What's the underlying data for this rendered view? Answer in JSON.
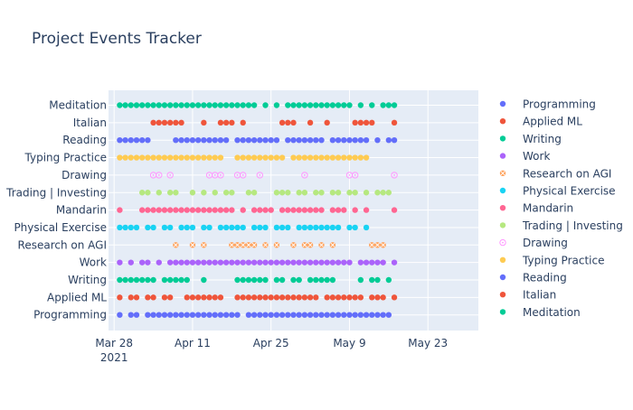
{
  "chart_data": {
    "type": "scatter",
    "title": "Project Events Tracker",
    "x_axis": {
      "type": "date",
      "range": [
        "2021-03-27",
        "2021-06-01"
      ],
      "ticks": [
        {
          "date": "2021-03-28",
          "label": "Mar 28",
          "sublabel": "2021"
        },
        {
          "date": "2021-04-11",
          "label": "Apr 11"
        },
        {
          "date": "2021-04-25",
          "label": "Apr 25"
        },
        {
          "date": "2021-05-09",
          "label": "May 9"
        },
        {
          "date": "2021-05-23",
          "label": "May 23"
        }
      ]
    },
    "y_axis": {
      "type": "category",
      "categories": [
        "Programming",
        "Applied ML",
        "Writing",
        "Work",
        "Research on AGI",
        "Physical Exercise",
        "Mandarin",
        "Trading | Investing",
        "Drawing",
        "Typing Practice",
        "Reading",
        "Italian",
        "Meditation"
      ]
    },
    "grid": true,
    "plot_background": "#e5ecf6",
    "legend_placement": "right",
    "series": [
      {
        "name": "Programming",
        "color": "#636efa",
        "symbol": "circle",
        "x": [
          "2021-03-29",
          "2021-03-31",
          "2021-04-01",
          "2021-04-03",
          "2021-04-04",
          "2021-04-05",
          "2021-04-06",
          "2021-04-07",
          "2021-04-08",
          "2021-04-09",
          "2021-04-10",
          "2021-04-11",
          "2021-04-12",
          "2021-04-13",
          "2021-04-14",
          "2021-04-15",
          "2021-04-16",
          "2021-04-17",
          "2021-04-18",
          "2021-04-19",
          "2021-04-21",
          "2021-04-22",
          "2021-04-23",
          "2021-04-24",
          "2021-04-25",
          "2021-04-26",
          "2021-04-27",
          "2021-04-28",
          "2021-04-29",
          "2021-04-30",
          "2021-05-01",
          "2021-05-02",
          "2021-05-03",
          "2021-05-04",
          "2021-05-05",
          "2021-05-06",
          "2021-05-07",
          "2021-05-08",
          "2021-05-09",
          "2021-05-10",
          "2021-05-11",
          "2021-05-12",
          "2021-05-13",
          "2021-05-14",
          "2021-05-15",
          "2021-05-16"
        ]
      },
      {
        "name": "Applied ML",
        "color": "#ef553b",
        "symbol": "circle",
        "x": [
          "2021-03-29",
          "2021-03-31",
          "2021-04-01",
          "2021-04-03",
          "2021-04-04",
          "2021-04-06",
          "2021-04-07",
          "2021-04-10",
          "2021-04-11",
          "2021-04-12",
          "2021-04-13",
          "2021-04-14",
          "2021-04-15",
          "2021-04-16",
          "2021-04-19",
          "2021-04-20",
          "2021-04-21",
          "2021-04-22",
          "2021-04-23",
          "2021-04-24",
          "2021-04-25",
          "2021-04-26",
          "2021-04-27",
          "2021-04-28",
          "2021-04-29",
          "2021-04-30",
          "2021-05-01",
          "2021-05-02",
          "2021-05-03",
          "2021-05-05",
          "2021-05-06",
          "2021-05-07",
          "2021-05-08",
          "2021-05-09",
          "2021-05-10",
          "2021-05-11",
          "2021-05-13",
          "2021-05-14",
          "2021-05-15",
          "2021-05-17"
        ]
      },
      {
        "name": "Writing",
        "color": "#00cc96",
        "symbol": "circle",
        "x": [
          "2021-03-29",
          "2021-03-30",
          "2021-03-31",
          "2021-04-01",
          "2021-04-02",
          "2021-04-03",
          "2021-04-04",
          "2021-04-06",
          "2021-04-07",
          "2021-04-08",
          "2021-04-09",
          "2021-04-10",
          "2021-04-13",
          "2021-04-19",
          "2021-04-20",
          "2021-04-21",
          "2021-04-22",
          "2021-04-23",
          "2021-04-24",
          "2021-04-26",
          "2021-04-27",
          "2021-04-29",
          "2021-04-30",
          "2021-05-02",
          "2021-05-03",
          "2021-05-04",
          "2021-05-05",
          "2021-05-06",
          "2021-05-11",
          "2021-05-13",
          "2021-05-14",
          "2021-05-16"
        ]
      },
      {
        "name": "Work",
        "color": "#ab63fa",
        "symbol": "circle",
        "x": [
          "2021-03-29",
          "2021-03-31",
          "2021-04-02",
          "2021-04-03",
          "2021-04-05",
          "2021-04-07",
          "2021-04-08",
          "2021-04-09",
          "2021-04-10",
          "2021-04-11",
          "2021-04-12",
          "2021-04-13",
          "2021-04-14",
          "2021-04-15",
          "2021-04-16",
          "2021-04-17",
          "2021-04-18",
          "2021-04-19",
          "2021-04-20",
          "2021-04-21",
          "2021-04-22",
          "2021-04-23",
          "2021-04-24",
          "2021-04-25",
          "2021-04-26",
          "2021-04-27",
          "2021-04-28",
          "2021-04-29",
          "2021-04-30",
          "2021-05-01",
          "2021-05-02",
          "2021-05-03",
          "2021-05-04",
          "2021-05-05",
          "2021-05-06",
          "2021-05-07",
          "2021-05-08",
          "2021-05-09",
          "2021-05-11",
          "2021-05-12",
          "2021-05-13",
          "2021-05-14",
          "2021-05-15",
          "2021-05-17"
        ]
      },
      {
        "name": "Research on AGI",
        "color": "#ffa15a",
        "symbol": "circle-x",
        "x": [
          "2021-04-08",
          "2021-04-11",
          "2021-04-13",
          "2021-04-18",
          "2021-04-19",
          "2021-04-20",
          "2021-04-21",
          "2021-04-22",
          "2021-04-24",
          "2021-04-26",
          "2021-04-29",
          "2021-05-01",
          "2021-05-02",
          "2021-05-04",
          "2021-05-06",
          "2021-05-13",
          "2021-05-14",
          "2021-05-15"
        ]
      },
      {
        "name": "Physical Exercise",
        "color": "#19d3f3",
        "symbol": "circle",
        "x": [
          "2021-03-29",
          "2021-03-30",
          "2021-03-31",
          "2021-04-01",
          "2021-04-03",
          "2021-04-04",
          "2021-04-06",
          "2021-04-07",
          "2021-04-09",
          "2021-04-10",
          "2021-04-11",
          "2021-04-13",
          "2021-04-14",
          "2021-04-16",
          "2021-04-17",
          "2021-04-18",
          "2021-04-19",
          "2021-04-20",
          "2021-04-22",
          "2021-04-23",
          "2021-04-24",
          "2021-04-26",
          "2021-04-27",
          "2021-04-28",
          "2021-04-30",
          "2021-05-01",
          "2021-05-02",
          "2021-05-03",
          "2021-05-04",
          "2021-05-05",
          "2021-05-06",
          "2021-05-07",
          "2021-05-09",
          "2021-05-10",
          "2021-05-12"
        ]
      },
      {
        "name": "Mandarin",
        "color": "#ff6692",
        "symbol": "circle",
        "x": [
          "2021-03-29",
          "2021-04-02",
          "2021-04-03",
          "2021-04-04",
          "2021-04-05",
          "2021-04-06",
          "2021-04-07",
          "2021-04-08",
          "2021-04-09",
          "2021-04-10",
          "2021-04-11",
          "2021-04-12",
          "2021-04-13",
          "2021-04-14",
          "2021-04-15",
          "2021-04-16",
          "2021-04-17",
          "2021-04-18",
          "2021-04-20",
          "2021-04-22",
          "2021-04-23",
          "2021-04-24",
          "2021-04-25",
          "2021-04-27",
          "2021-04-28",
          "2021-04-29",
          "2021-04-30",
          "2021-05-01",
          "2021-05-02",
          "2021-05-03",
          "2021-05-04",
          "2021-05-06",
          "2021-05-07",
          "2021-05-08",
          "2021-05-10",
          "2021-05-12",
          "2021-05-17"
        ]
      },
      {
        "name": "Trading | Investing",
        "color": "#b6e880",
        "symbol": "circle",
        "x": [
          "2021-04-02",
          "2021-04-03",
          "2021-04-05",
          "2021-04-07",
          "2021-04-08",
          "2021-04-11",
          "2021-04-13",
          "2021-04-15",
          "2021-04-17",
          "2021-04-18",
          "2021-04-21",
          "2021-04-22",
          "2021-04-26",
          "2021-04-27",
          "2021-04-28",
          "2021-04-30",
          "2021-05-01",
          "2021-05-03",
          "2021-05-04",
          "2021-05-06",
          "2021-05-07",
          "2021-05-09",
          "2021-05-10",
          "2021-05-12",
          "2021-05-14",
          "2021-05-15",
          "2021-05-16"
        ]
      },
      {
        "name": "Drawing",
        "color": "#ff97ff",
        "symbol": "circle-open-dot",
        "x": [
          "2021-04-04",
          "2021-04-05",
          "2021-04-07",
          "2021-04-14",
          "2021-04-15",
          "2021-04-16",
          "2021-04-19",
          "2021-04-20",
          "2021-04-23",
          "2021-05-01",
          "2021-05-09",
          "2021-05-10",
          "2021-05-17"
        ]
      },
      {
        "name": "Typing Practice",
        "color": "#fecb52",
        "symbol": "circle",
        "x": [
          "2021-03-29",
          "2021-03-30",
          "2021-03-31",
          "2021-04-01",
          "2021-04-02",
          "2021-04-03",
          "2021-04-04",
          "2021-04-05",
          "2021-04-06",
          "2021-04-07",
          "2021-04-08",
          "2021-04-09",
          "2021-04-10",
          "2021-04-11",
          "2021-04-12",
          "2021-04-13",
          "2021-04-14",
          "2021-04-15",
          "2021-04-16",
          "2021-04-19",
          "2021-04-20",
          "2021-04-21",
          "2021-04-22",
          "2021-04-23",
          "2021-04-24",
          "2021-04-25",
          "2021-04-26",
          "2021-04-27",
          "2021-04-29",
          "2021-04-30",
          "2021-05-01",
          "2021-05-02",
          "2021-05-03",
          "2021-05-04",
          "2021-05-05",
          "2021-05-06",
          "2021-05-07",
          "2021-05-08",
          "2021-05-09",
          "2021-05-10",
          "2021-05-11",
          "2021-05-12"
        ]
      },
      {
        "name": "Reading",
        "color": "#636efa",
        "symbol": "circle",
        "x": [
          "2021-03-29",
          "2021-03-30",
          "2021-03-31",
          "2021-04-01",
          "2021-04-02",
          "2021-04-03",
          "2021-04-08",
          "2021-04-09",
          "2021-04-10",
          "2021-04-11",
          "2021-04-12",
          "2021-04-13",
          "2021-04-14",
          "2021-04-15",
          "2021-04-16",
          "2021-04-17",
          "2021-04-19",
          "2021-04-20",
          "2021-04-21",
          "2021-04-22",
          "2021-04-23",
          "2021-04-24",
          "2021-04-25",
          "2021-04-26",
          "2021-04-28",
          "2021-04-29",
          "2021-04-30",
          "2021-05-01",
          "2021-05-02",
          "2021-05-03",
          "2021-05-04",
          "2021-05-06",
          "2021-05-07",
          "2021-05-08",
          "2021-05-09",
          "2021-05-10",
          "2021-05-11",
          "2021-05-12",
          "2021-05-14",
          "2021-05-16",
          "2021-05-17"
        ]
      },
      {
        "name": "Italian",
        "color": "#ef553b",
        "symbol": "circle",
        "x": [
          "2021-04-04",
          "2021-04-05",
          "2021-04-06",
          "2021-04-07",
          "2021-04-08",
          "2021-04-09",
          "2021-04-13",
          "2021-04-16",
          "2021-04-17",
          "2021-04-18",
          "2021-04-20",
          "2021-04-27",
          "2021-04-28",
          "2021-04-29",
          "2021-05-02",
          "2021-05-05",
          "2021-05-10",
          "2021-05-11",
          "2021-05-12",
          "2021-05-13",
          "2021-05-17"
        ]
      },
      {
        "name": "Meditation",
        "color": "#00cc96",
        "symbol": "circle",
        "x": [
          "2021-03-29",
          "2021-03-30",
          "2021-03-31",
          "2021-04-01",
          "2021-04-02",
          "2021-04-03",
          "2021-04-04",
          "2021-04-05",
          "2021-04-06",
          "2021-04-07",
          "2021-04-08",
          "2021-04-09",
          "2021-04-10",
          "2021-04-11",
          "2021-04-12",
          "2021-04-13",
          "2021-04-14",
          "2021-04-15",
          "2021-04-16",
          "2021-04-17",
          "2021-04-18",
          "2021-04-19",
          "2021-04-20",
          "2021-04-21",
          "2021-04-22",
          "2021-04-24",
          "2021-04-26",
          "2021-04-28",
          "2021-04-29",
          "2021-04-30",
          "2021-05-01",
          "2021-05-02",
          "2021-05-03",
          "2021-05-04",
          "2021-05-05",
          "2021-05-06",
          "2021-05-07",
          "2021-05-08",
          "2021-05-09",
          "2021-05-11",
          "2021-05-13",
          "2021-05-15",
          "2021-05-16",
          "2021-05-17"
        ]
      }
    ]
  }
}
